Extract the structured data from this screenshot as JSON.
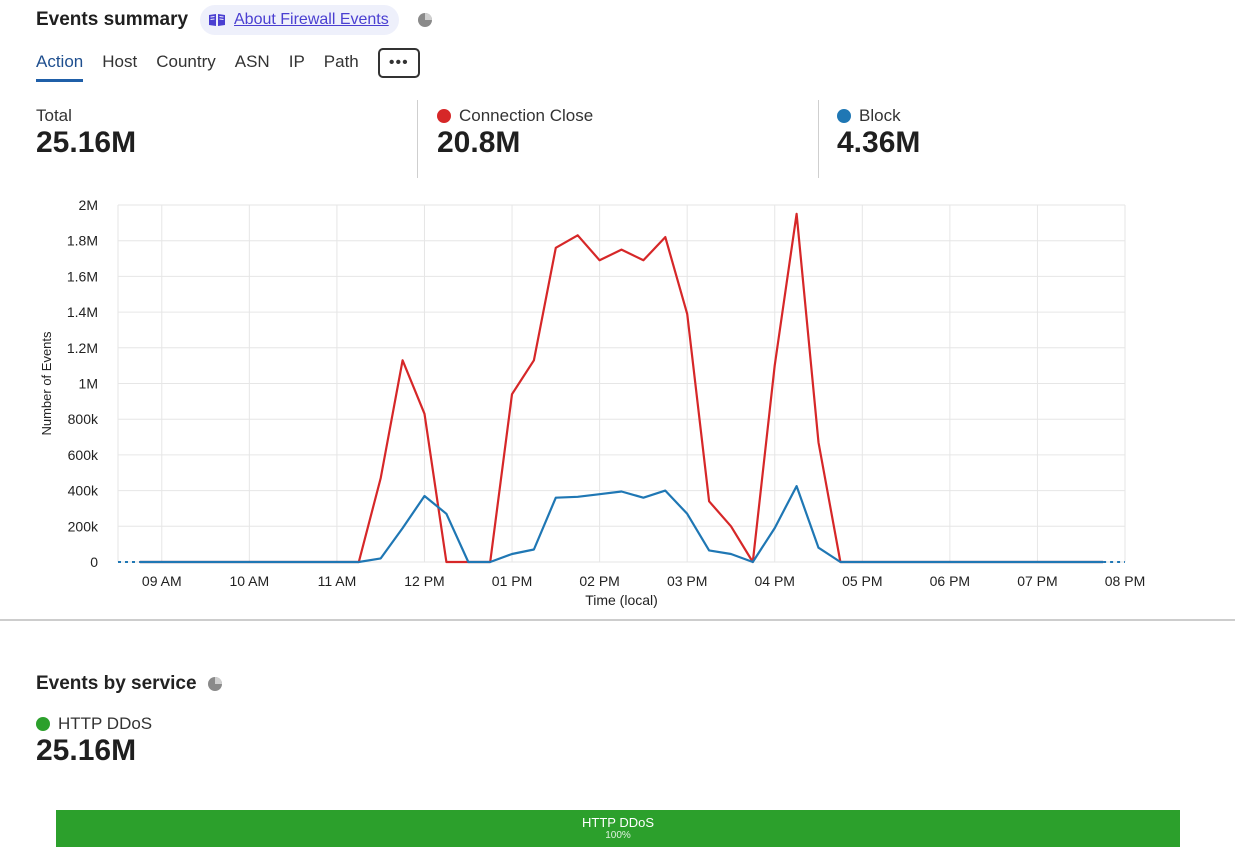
{
  "header": {
    "title": "Events summary",
    "about_link": "About Firewall Events",
    "book_icon": "book-icon",
    "pie_icon": "pie-chart-icon"
  },
  "tabs": [
    {
      "label": "Action",
      "active": true
    },
    {
      "label": "Host"
    },
    {
      "label": "Country"
    },
    {
      "label": "ASN"
    },
    {
      "label": "IP"
    },
    {
      "label": "Path"
    }
  ],
  "more_button": "•••",
  "stats": [
    {
      "label": "Total",
      "value": "25.16M"
    },
    {
      "label": "Connection Close",
      "value": "20.8M",
      "color": "#d62728"
    },
    {
      "label": "Block",
      "value": "4.36M",
      "color": "#1f77b4"
    }
  ],
  "chart_data": {
    "type": "line",
    "xlabel": "Time (local)",
    "ylabel": "Number of Events",
    "ylim": [
      0,
      2000000
    ],
    "y_ticks": [
      {
        "value": 0,
        "label": "0"
      },
      {
        "value": 200000,
        "label": "200k"
      },
      {
        "value": 400000,
        "label": "400k"
      },
      {
        "value": 600000,
        "label": "600k"
      },
      {
        "value": 800000,
        "label": "800k"
      },
      {
        "value": 1000000,
        "label": "1M"
      },
      {
        "value": 1200000,
        "label": "1.2M"
      },
      {
        "value": 1400000,
        "label": "1.4M"
      },
      {
        "value": 1600000,
        "label": "1.6M"
      },
      {
        "value": 1800000,
        "label": "1.8M"
      },
      {
        "value": 2000000,
        "label": "2M"
      }
    ],
    "xlim": [
      8.5,
      20
    ],
    "x_ticks": [
      {
        "value": 9,
        "label": "09 AM"
      },
      {
        "value": 10,
        "label": "10 AM"
      },
      {
        "value": 11,
        "label": "11 AM"
      },
      {
        "value": 12,
        "label": "12 PM"
      },
      {
        "value": 13,
        "label": "01 PM"
      },
      {
        "value": 14,
        "label": "02 PM"
      },
      {
        "value": 15,
        "label": "03 PM"
      },
      {
        "value": 16,
        "label": "04 PM"
      },
      {
        "value": 17,
        "label": "05 PM"
      },
      {
        "value": 18,
        "label": "06 PM"
      },
      {
        "value": 19,
        "label": "07 PM"
      },
      {
        "value": 20,
        "label": "08 PM"
      }
    ],
    "grid": true,
    "x": [
      8.75,
      9,
      9.25,
      9.5,
      9.75,
      10,
      10.25,
      10.5,
      10.75,
      11,
      11.25,
      11.5,
      11.75,
      12,
      12.25,
      12.5,
      12.75,
      13,
      13.25,
      13.5,
      13.75,
      14,
      14.25,
      14.5,
      14.75,
      15,
      15.25,
      15.5,
      15.75,
      16,
      16.25,
      16.5,
      16.75,
      17,
      17.25,
      17.5,
      17.75,
      18,
      18.25,
      18.5,
      18.75,
      19,
      19.25,
      19.5,
      19.75
    ],
    "series": [
      {
        "name": "Connection Close",
        "color": "#d62728",
        "values": [
          0,
          0,
          0,
          0,
          0,
          0,
          0,
          0,
          0,
          0,
          0,
          470000,
          1130000,
          830000,
          0,
          0,
          0,
          940000,
          1130000,
          1760000,
          1830000,
          1690000,
          1750000,
          1690000,
          1820000,
          1390000,
          340000,
          200000,
          0,
          1100000,
          1950000,
          670000,
          0,
          0,
          0,
          0,
          0,
          0,
          0,
          0,
          0,
          0,
          0,
          0,
          0
        ]
      },
      {
        "name": "Block",
        "color": "#1f77b4",
        "values": [
          0,
          0,
          0,
          0,
          0,
          0,
          0,
          0,
          0,
          0,
          0,
          20000,
          190000,
          370000,
          270000,
          0,
          0,
          45000,
          70000,
          360000,
          365000,
          380000,
          395000,
          360000,
          400000,
          270000,
          65000,
          45000,
          0,
          190000,
          425000,
          80000,
          0,
          0,
          0,
          0,
          0,
          0,
          0,
          0,
          0,
          0,
          0,
          0,
          0
        ]
      }
    ]
  },
  "services": {
    "title": "Events by service",
    "pie_icon": "pie-chart-icon",
    "legend_label": "HTTP DDoS",
    "legend_color": "#2ca02c",
    "total": "25.16M",
    "bar_label": "HTTP DDoS",
    "bar_pct_label": "100%",
    "bar_fraction": 1.0
  }
}
